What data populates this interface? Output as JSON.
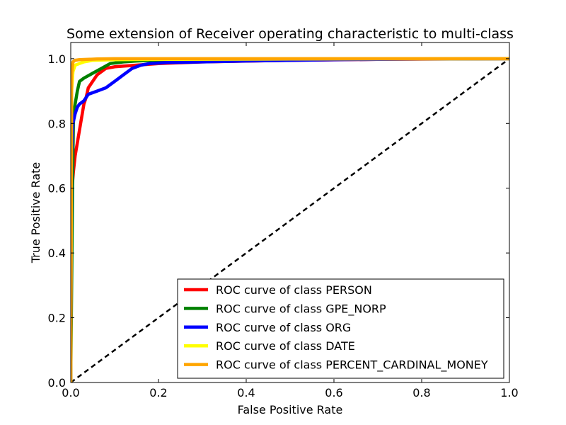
{
  "chart_data": {
    "type": "line",
    "title": "Some extension of Receiver operating characteristic to multi-class",
    "xlabel": "False Positive Rate",
    "ylabel": "True Positive Rate",
    "xlim": [
      0.0,
      1.0
    ],
    "ylim": [
      0.0,
      1.05
    ],
    "xticks": [
      "0.0",
      "0.2",
      "0.4",
      "0.6",
      "0.8",
      "1.0"
    ],
    "yticks": [
      "0.0",
      "0.2",
      "0.4",
      "0.6",
      "0.8",
      "1.0"
    ],
    "grid": false,
    "legend_position": "lower-right",
    "diagonal": {
      "x": [
        0,
        1
      ],
      "y": [
        0,
        1
      ],
      "color": "#000000",
      "style": "dashed"
    },
    "series": [
      {
        "name": "ROC curve of class PERSON",
        "color": "#ff0000",
        "x": [
          0,
          0.001,
          0.003,
          0.006,
          0.01,
          0.015,
          0.02,
          0.025,
          0.03,
          0.035,
          0.04,
          0.05,
          0.06,
          0.08,
          0.1,
          0.15,
          0.2,
          0.3,
          0.5,
          0.7,
          1.0
        ],
        "y": [
          0,
          0.55,
          0.6,
          0.65,
          0.7,
          0.74,
          0.78,
          0.82,
          0.86,
          0.88,
          0.91,
          0.93,
          0.95,
          0.97,
          0.975,
          0.98,
          0.985,
          0.99,
          0.995,
          0.998,
          1.0
        ]
      },
      {
        "name": "ROC curve of class GPE_NORP",
        "color": "#008000",
        "x": [
          0,
          0.002,
          0.004,
          0.006,
          0.008,
          0.01,
          0.015,
          0.02,
          0.03,
          0.05,
          0.07,
          0.09,
          0.12,
          0.15,
          0.2,
          0.4,
          1.0
        ],
        "y": [
          0,
          0.3,
          0.6,
          0.8,
          0.84,
          0.86,
          0.9,
          0.93,
          0.94,
          0.955,
          0.97,
          0.985,
          0.99,
          0.993,
          0.996,
          0.998,
          1.0
        ]
      },
      {
        "name": "ROC curve of class ORG",
        "color": "#0000ff",
        "x": [
          0,
          0.002,
          0.005,
          0.01,
          0.015,
          0.02,
          0.03,
          0.04,
          0.06,
          0.08,
          0.1,
          0.12,
          0.14,
          0.16,
          0.18,
          0.22,
          0.3,
          0.4,
          0.6,
          0.8,
          1.0
        ],
        "y": [
          0,
          0.7,
          0.8,
          0.83,
          0.85,
          0.86,
          0.87,
          0.89,
          0.9,
          0.91,
          0.93,
          0.95,
          0.97,
          0.98,
          0.985,
          0.988,
          0.99,
          0.993,
          0.997,
          0.999,
          1.0
        ]
      },
      {
        "name": "ROC curve of class DATE",
        "color": "#ffff00",
        "x": [
          0,
          0.002,
          0.005,
          0.01,
          0.02,
          0.03,
          0.05,
          0.1,
          0.2,
          0.5,
          1.0
        ],
        "y": [
          0,
          0.9,
          0.96,
          0.98,
          0.985,
          0.99,
          0.995,
          0.997,
          0.998,
          0.999,
          1.0
        ]
      },
      {
        "name": "ROC curve of class PERCENT_CARDINAL_MONEY",
        "color": "#ffa500",
        "x": [
          0,
          0.002,
          0.005,
          0.01,
          0.02,
          0.04,
          0.06,
          0.1,
          0.3,
          0.6,
          1.0
        ],
        "y": [
          0,
          0.95,
          0.99,
          0.995,
          0.997,
          0.998,
          0.999,
          1.0,
          1.0,
          1.0,
          1.0
        ]
      }
    ]
  }
}
